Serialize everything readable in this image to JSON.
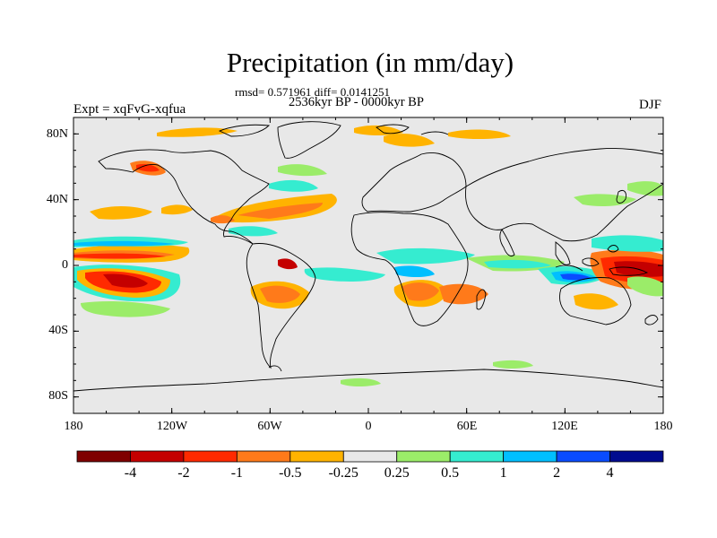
{
  "title": "Precipitation (in mm/day)",
  "stats_line": "rmsd= 0.571961 diff= 0.0141251",
  "period_line": "2536kyr BP - 0000kyr BP",
  "left_label": "Expt = xqFvG-xqfua",
  "right_label": "DJF",
  "y_ticks": [
    "80N",
    "40N",
    "0",
    "40S",
    "80S"
  ],
  "x_ticks": [
    "180",
    "120W",
    "60W",
    "0",
    "60E",
    "120E",
    "180"
  ],
  "colorbar": {
    "colors": [
      "#7f0000",
      "#c40000",
      "#ff2a00",
      "#ff7a1a",
      "#ffb300",
      "#e8e8e8",
      "#9bec69",
      "#35ecd0",
      "#00bfff",
      "#0a4cff",
      "#000b8f"
    ],
    "labels": [
      "-4",
      "-2",
      "-1",
      "-0.5",
      "-0.25",
      "0.25",
      "0.5",
      "1",
      "2",
      "4"
    ]
  },
  "colors": {
    "ocean_land_neutral": "#e8e8e8",
    "coastline": "#000000"
  }
}
